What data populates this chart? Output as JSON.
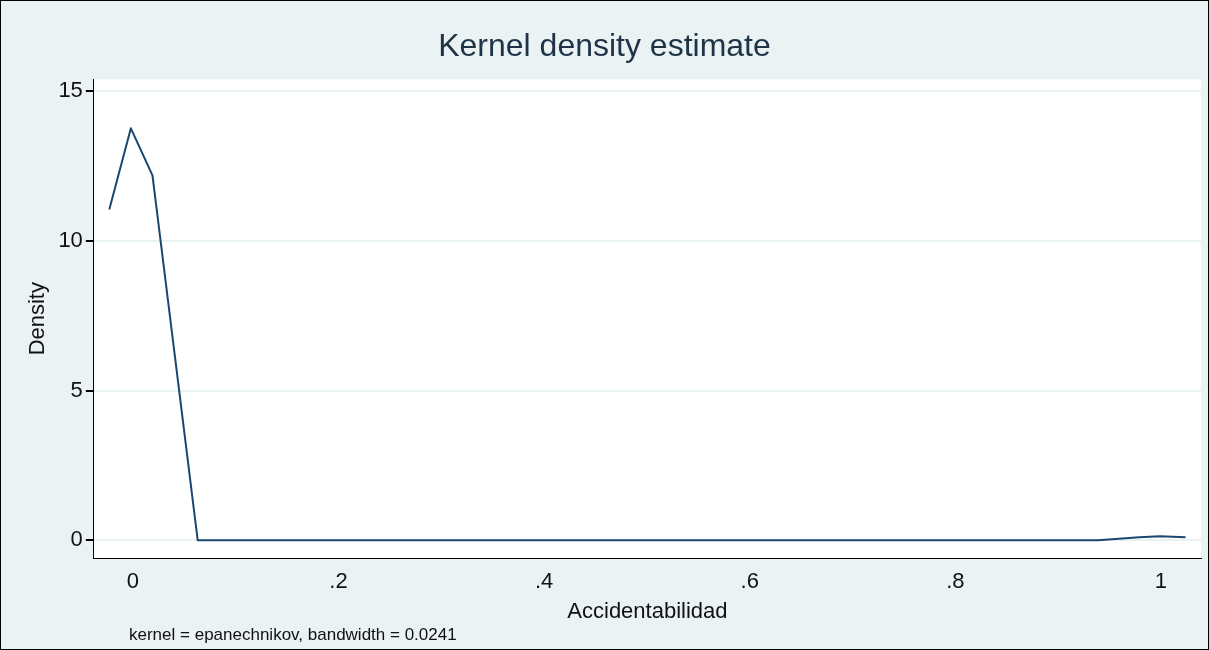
{
  "chart_data": {
    "type": "line",
    "title": "Kernel density estimate",
    "xlabel": "Accidentabilidad",
    "ylabel": "Density",
    "x": [
      -0.023,
      -0.002,
      0.019,
      0.063,
      0.939,
      0.979,
      0.999,
      1.024
    ],
    "series": [
      {
        "color": "#1a476f",
        "values": [
          11.05,
          13.76,
          12.19,
          0,
          0,
          0.1,
          0.13,
          0.1
        ]
      }
    ],
    "xlim": [
      -0.038,
      1.039
    ],
    "ylim": [
      -0.6,
      15.4
    ],
    "xticks": [
      0,
      {
        "value": 0.2,
        "label": ".2"
      },
      {
        "value": 0.4,
        "label": ".4"
      },
      {
        "value": 0.6,
        "label": ".6"
      },
      {
        "value": 0.8,
        "label": ".8"
      },
      1
    ],
    "yticks": [
      0,
      5,
      10,
      15
    ],
    "grid": "y",
    "legend": false,
    "marker": "none",
    "line_style": "solid",
    "annotations": [
      "kernel = epanechnikov, bandwidth = 0.0241"
    ]
  }
}
